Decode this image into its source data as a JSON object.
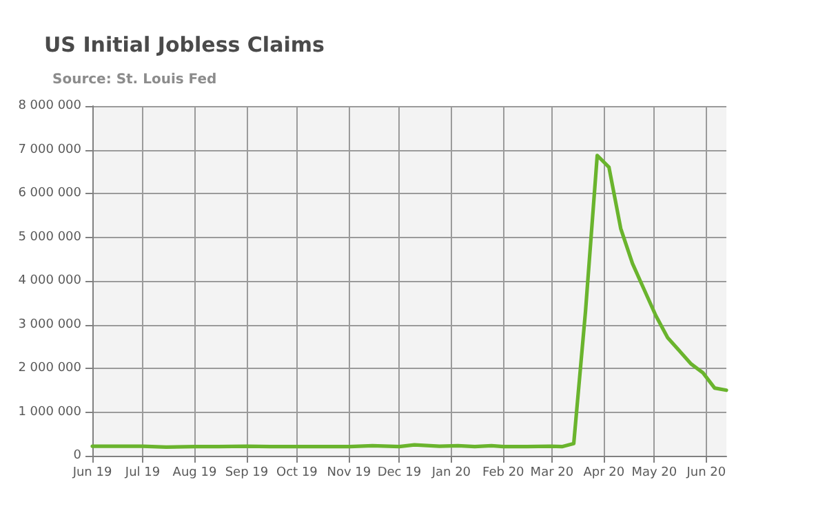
{
  "chart_data": {
    "type": "line",
    "title": "US Initial Jobless Claims",
    "subtitle": "Source: St. Louis Fed",
    "x": [
      "2019-06-01",
      "2019-06-15",
      "2019-07-01",
      "2019-07-15",
      "2019-08-01",
      "2019-08-15",
      "2019-09-01",
      "2019-09-15",
      "2019-10-01",
      "2019-10-15",
      "2019-11-01",
      "2019-11-15",
      "2019-12-01",
      "2019-12-10",
      "2019-12-25",
      "2020-01-05",
      "2020-01-15",
      "2020-01-25",
      "2020-02-01",
      "2020-02-15",
      "2020-02-29",
      "2020-03-07",
      "2020-03-14",
      "2020-03-21",
      "2020-03-28",
      "2020-04-04",
      "2020-04-11",
      "2020-04-18",
      "2020-04-25",
      "2020-05-02",
      "2020-05-09",
      "2020-05-16",
      "2020-05-23",
      "2020-05-30",
      "2020-06-06",
      "2020-06-13"
    ],
    "series": [
      {
        "color": "#6ab42d",
        "values": [
          220000,
          220000,
          220000,
          200000,
          210000,
          210000,
          220000,
          210000,
          210000,
          210000,
          210000,
          230000,
          210000,
          250000,
          220000,
          230000,
          210000,
          230000,
          210000,
          210000,
          220000,
          210000,
          280000,
          3300000,
          6870000,
          6600000,
          5200000,
          4400000,
          3800000,
          3200000,
          2700000,
          2400000,
          2100000,
          1900000,
          1550000,
          1500000
        ]
      }
    ],
    "xlim": [
      "2019-06-01",
      "2020-06-13"
    ],
    "xticks": [
      {
        "value": "2019-06-01",
        "label": "Jun 19"
      },
      {
        "value": "2019-07-01",
        "label": "Jul 19"
      },
      {
        "value": "2019-08-01",
        "label": "Aug 19"
      },
      {
        "value": "2019-09-01",
        "label": "Sep 19"
      },
      {
        "value": "2019-10-01",
        "label": "Oct 19"
      },
      {
        "value": "2019-11-01",
        "label": "Nov 19"
      },
      {
        "value": "2019-12-01",
        "label": "Dec 19"
      },
      {
        "value": "2020-01-01",
        "label": "Jan 20"
      },
      {
        "value": "2020-02-01",
        "label": "Feb 20"
      },
      {
        "value": "2020-03-01",
        "label": "Mar 20"
      },
      {
        "value": "2020-04-01",
        "label": "Apr 20"
      },
      {
        "value": "2020-05-01",
        "label": "May 20"
      },
      {
        "value": "2020-06-01",
        "label": "Jun 20"
      }
    ],
    "ylim": [
      0,
      8000000
    ],
    "yticks": [
      0,
      {
        "value": 1000000,
        "label": "1 000 000"
      },
      {
        "value": 2000000,
        "label": "2 000 000"
      },
      {
        "value": 3000000,
        "label": "3 000 000"
      },
      {
        "value": 4000000,
        "label": "4 000 000"
      },
      {
        "value": 5000000,
        "label": "5 000 000"
      },
      {
        "value": 6000000,
        "label": "6 000 000"
      },
      {
        "value": 7000000,
        "label": "7 000 000"
      },
      {
        "value": 8000000,
        "label": "8 000 000"
      }
    ],
    "grid": true,
    "marker": "none",
    "line_style": "solid"
  }
}
